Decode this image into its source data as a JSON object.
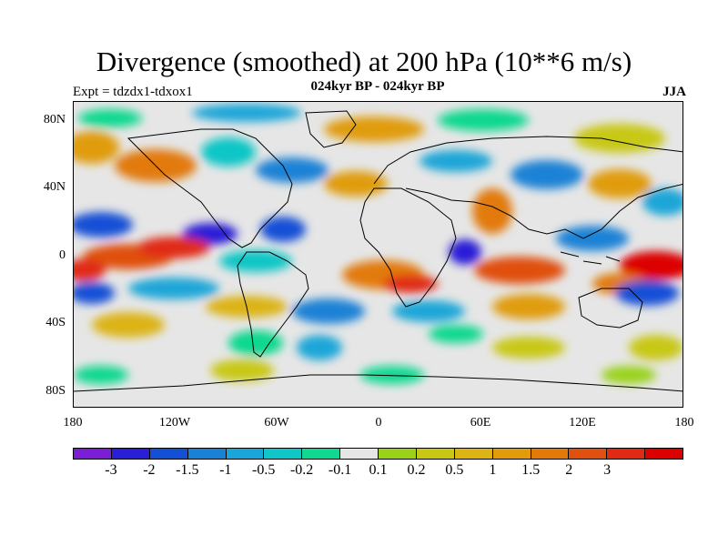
{
  "title": "Divergence (smoothed) at 200 hPa (10**6 m/s)",
  "subtitle": "024kyr BP - 024kyr BP",
  "expt": "Expt = tdzdx1-tdxox1",
  "season": "JJA",
  "axes": {
    "y_ticks": [
      "80N",
      "40N",
      "0",
      "40S",
      "80S"
    ],
    "x_ticks": [
      "180",
      "120W",
      "60W",
      "0",
      "60E",
      "120E",
      "180"
    ]
  },
  "colorbar": {
    "colors": [
      "#7a1fd6",
      "#2a1ed6",
      "#1450d6",
      "#1a82d6",
      "#1aa6d8",
      "#10c6c6",
      "#10d890",
      "#e6e6e6",
      "#9ad21a",
      "#c8c814",
      "#dcb414",
      "#e09c0a",
      "#e27a0a",
      "#e05010",
      "#e02a14",
      "#dc0000"
    ],
    "labels": [
      "-3",
      "-2",
      "-1.5",
      "-1",
      "-0.5",
      "-0.2",
      "-0.1",
      "0.1",
      "0.2",
      "0.5",
      "1",
      "1.5",
      "2",
      "3"
    ]
  },
  "map": {
    "background": "#e6e6e6",
    "coastline": "#000000"
  }
}
